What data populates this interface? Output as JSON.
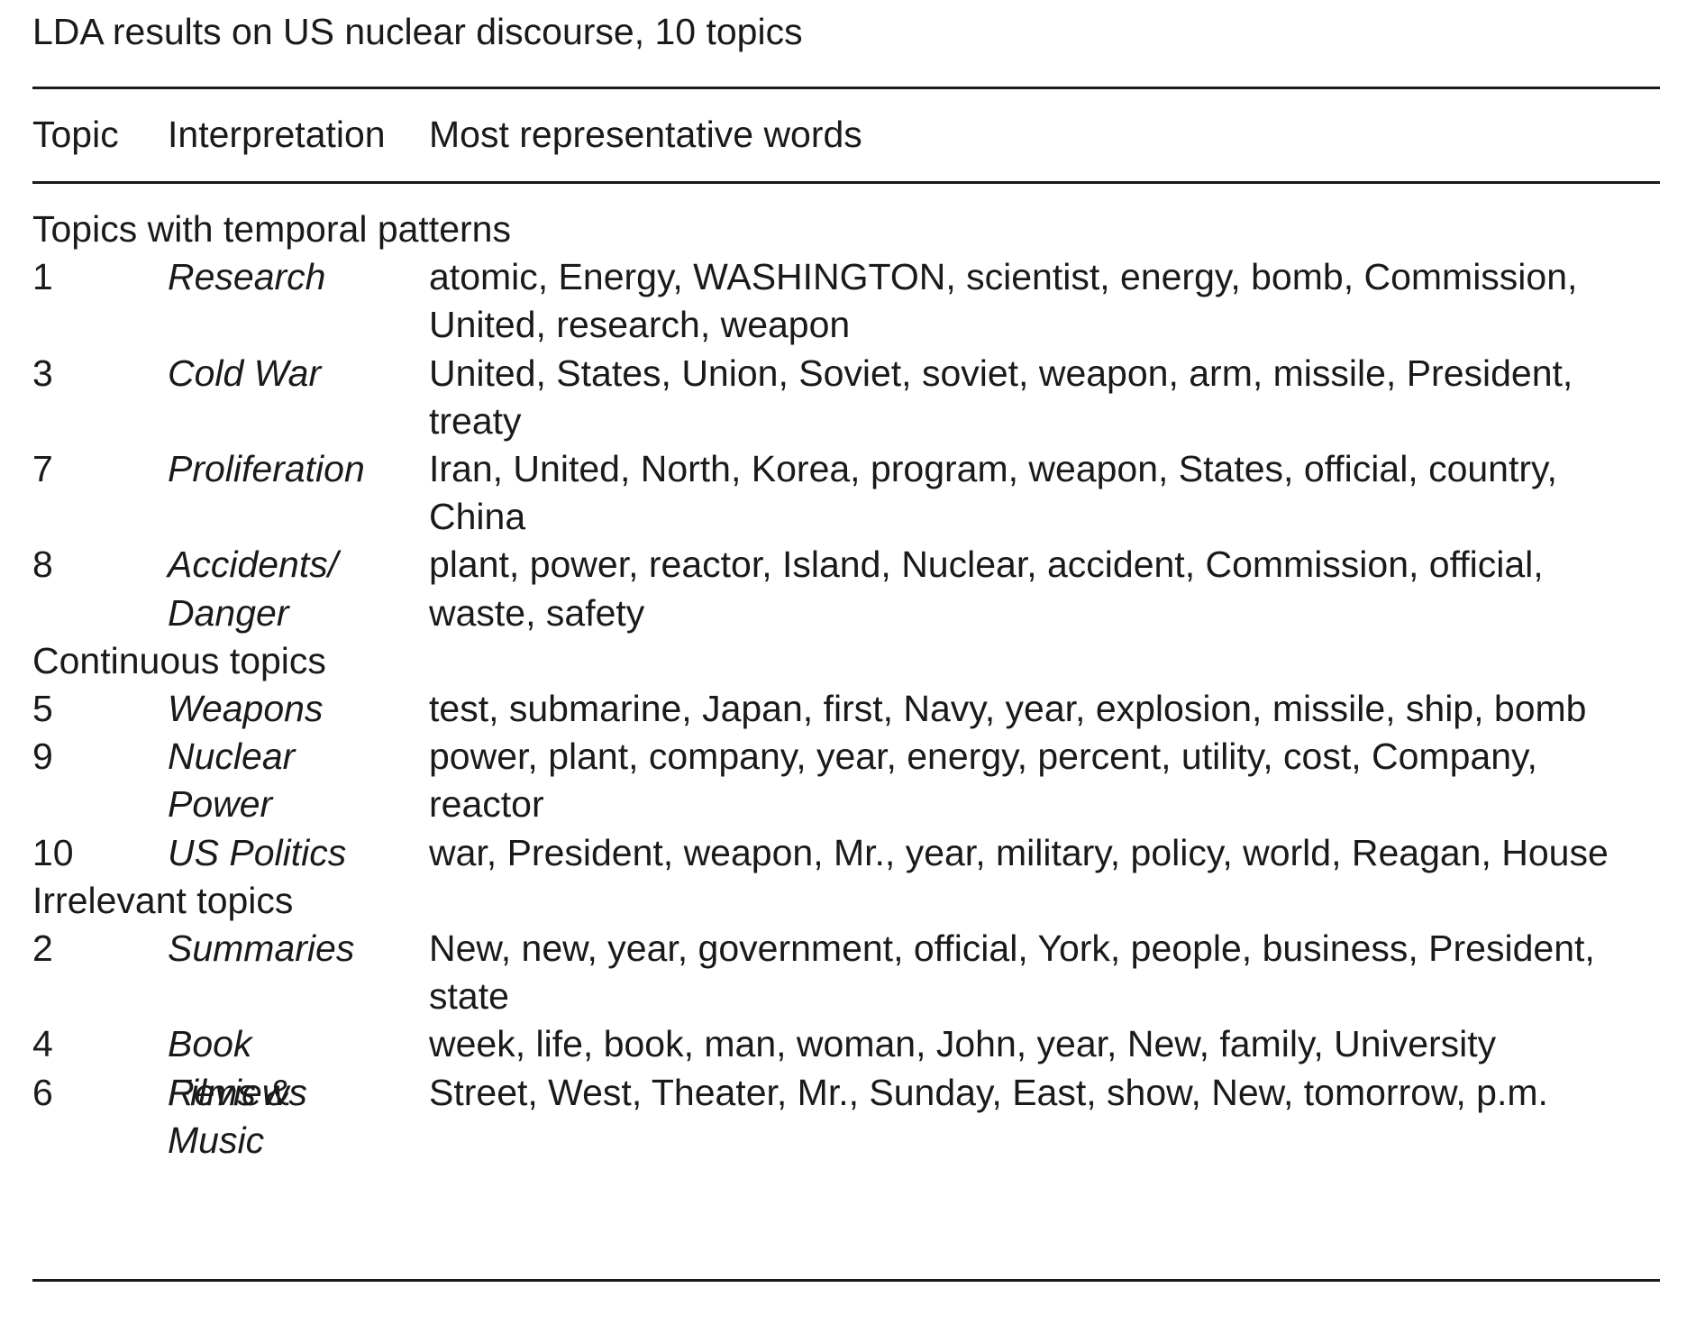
{
  "caption": "LDA results on US nuclear discourse, 10 topics",
  "header": {
    "topic": "Topic",
    "interpretation": "Interpretation",
    "words": "Most representative words"
  },
  "groups": [
    {
      "label": "Topics with temporal patterns",
      "rows": [
        {
          "topic": "1",
          "interpretation": "Research",
          "words": "atomic, Energy, WASHINGTON, scientist, energy, bomb, Commission, United, research, weapon"
        },
        {
          "topic": "3",
          "interpretation": "Cold War",
          "words": "United, States, Union, Soviet, soviet, weapon, arm, missile, President, treaty"
        },
        {
          "topic": "7",
          "interpretation": "Proliferation",
          "words": "Iran, United, North, Korea, program, weapon, States, official, country, China"
        },
        {
          "topic": "8",
          "interpretation": "Accidents/ Danger",
          "words": "plant, power, reactor, Island, Nuclear, accident, Commission, official, waste, safety"
        }
      ]
    },
    {
      "label": "Continuous topics",
      "rows": [
        {
          "topic": "5",
          "interpretation": "Weapons",
          "words": "test, submarine, Japan, first, Navy, year, explosion, missile, ship, bomb"
        },
        {
          "topic": "9",
          "interpretation": "Nuclear Power",
          "words": "power, plant, company, year, energy, percent, utility, cost, Company, reactor"
        },
        {
          "topic": "10",
          "interpretation": "US Politics",
          "words": "war, President, weapon, Mr., year, military, policy, world, Reagan, House"
        }
      ]
    },
    {
      "label": "Irrelevant topics",
      "rows": [
        {
          "topic": "2",
          "interpretation": "Summaries",
          "words": "New, new, year, government, official, York, people, business, President, state"
        },
        {
          "topic": "4",
          "interpretation": "Book Reviews",
          "words": "week, life, book, man, woman, John, year, New, family, University"
        },
        {
          "topic": "6",
          "interpretation": "Films & Music",
          "words": "Street, West, Theater, Mr., Sunday, East, show, New, tomorrow, p.m."
        }
      ]
    }
  ]
}
